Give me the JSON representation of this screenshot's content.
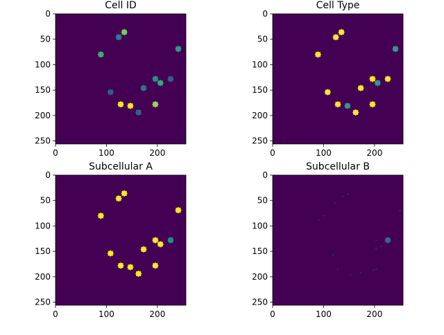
{
  "figure": {
    "background": "#ffffff"
  },
  "colors": {
    "viridis_0": "#440154",
    "viridis_25": "#3b528b",
    "viridis_50": "#21918c",
    "viridis_75": "#5ec962",
    "viridis_100": "#fde725"
  },
  "chart_data": [
    {
      "type": "heatmap",
      "title": "Cell ID",
      "xlabel": "",
      "ylabel": "",
      "image_size": [
        256,
        256
      ],
      "xlim": [
        0,
        256
      ],
      "ylim": [
        256,
        0
      ],
      "xticks": [
        0,
        100,
        200
      ],
      "yticks": [
        0,
        50,
        100,
        150,
        200,
        250
      ],
      "colormap": "viridis",
      "background_value": 0,
      "blobs": [
        {
          "x": 135,
          "y": 36,
          "value": 0.78
        },
        {
          "x": 124,
          "y": 46,
          "value": 0.42
        },
        {
          "x": 89,
          "y": 80,
          "value": 0.62
        },
        {
          "x": 241,
          "y": 69,
          "value": 0.55
        },
        {
          "x": 108,
          "y": 154,
          "value": 0.28
        },
        {
          "x": 173,
          "y": 146,
          "value": 0.4
        },
        {
          "x": 196,
          "y": 128,
          "value": 0.5
        },
        {
          "x": 206,
          "y": 136,
          "value": 0.6
        },
        {
          "x": 226,
          "y": 128,
          "value": 0.3
        },
        {
          "x": 128,
          "y": 178,
          "value": 1.0
        },
        {
          "x": 147,
          "y": 181,
          "value": 1.0
        },
        {
          "x": 163,
          "y": 194,
          "value": 0.3
        },
        {
          "x": 196,
          "y": 178,
          "value": 0.85
        }
      ]
    },
    {
      "type": "heatmap",
      "title": "Cell Type",
      "xlabel": "",
      "ylabel": "",
      "image_size": [
        256,
        256
      ],
      "xlim": [
        0,
        256
      ],
      "ylim": [
        256,
        0
      ],
      "xticks": [
        0,
        100,
        200
      ],
      "yticks": [
        0,
        50,
        100,
        150,
        200,
        250
      ],
      "colormap": "viridis",
      "background_value": 0,
      "blobs": [
        {
          "x": 135,
          "y": 36,
          "value": 1.0
        },
        {
          "x": 124,
          "y": 46,
          "value": 1.0
        },
        {
          "x": 89,
          "y": 80,
          "value": 1.0
        },
        {
          "x": 241,
          "y": 69,
          "value": 0.55
        },
        {
          "x": 108,
          "y": 154,
          "value": 1.0
        },
        {
          "x": 173,
          "y": 146,
          "value": 1.0
        },
        {
          "x": 196,
          "y": 128,
          "value": 1.0
        },
        {
          "x": 206,
          "y": 136,
          "value": 0.55
        },
        {
          "x": 226,
          "y": 128,
          "value": 1.0
        },
        {
          "x": 128,
          "y": 178,
          "value": 1.0
        },
        {
          "x": 147,
          "y": 181,
          "value": 0.55
        },
        {
          "x": 163,
          "y": 194,
          "value": 1.0
        },
        {
          "x": 196,
          "y": 178,
          "value": 1.0
        }
      ]
    },
    {
      "type": "heatmap",
      "title": "Subcellular A",
      "xlabel": "",
      "ylabel": "",
      "image_size": [
        256,
        256
      ],
      "xlim": [
        0,
        256
      ],
      "ylim": [
        256,
        0
      ],
      "xticks": [
        0,
        100,
        200
      ],
      "yticks": [
        0,
        50,
        100,
        150,
        200,
        250
      ],
      "colormap": "viridis",
      "background_value": 0,
      "blobs": [
        {
          "x": 135,
          "y": 36,
          "value": 1.0
        },
        {
          "x": 124,
          "y": 46,
          "value": 1.0
        },
        {
          "x": 89,
          "y": 80,
          "value": 1.0
        },
        {
          "x": 241,
          "y": 69,
          "value": 1.0
        },
        {
          "x": 108,
          "y": 154,
          "value": 1.0
        },
        {
          "x": 173,
          "y": 146,
          "value": 1.0
        },
        {
          "x": 196,
          "y": 128,
          "value": 1.0
        },
        {
          "x": 206,
          "y": 136,
          "value": 1.0
        },
        {
          "x": 226,
          "y": 128,
          "value": 0.5
        },
        {
          "x": 128,
          "y": 178,
          "value": 1.0
        },
        {
          "x": 147,
          "y": 181,
          "value": 1.0
        },
        {
          "x": 163,
          "y": 194,
          "value": 1.0
        },
        {
          "x": 196,
          "y": 178,
          "value": 1.0
        }
      ]
    },
    {
      "type": "heatmap",
      "title": "Subcellular B",
      "xlabel": "",
      "ylabel": "",
      "image_size": [
        256,
        256
      ],
      "xlim": [
        0,
        256
      ],
      "ylim": [
        256,
        0
      ],
      "xticks": [
        0,
        100,
        200
      ],
      "yticks": [
        0,
        50,
        100,
        150,
        200,
        250
      ],
      "colormap": "viridis",
      "background_value": 0,
      "blobs": [
        {
          "x": 226,
          "y": 128,
          "value": 0.35
        }
      ],
      "specks": [
        {
          "x": 100,
          "y": 80,
          "value": 0.3
        },
        {
          "x": 122,
          "y": 55,
          "value": 0.3
        },
        {
          "x": 138,
          "y": 42,
          "value": 0.3
        },
        {
          "x": 148,
          "y": 37,
          "value": 0.3
        },
        {
          "x": 90,
          "y": 88,
          "value": 0.3
        },
        {
          "x": 250,
          "y": 70,
          "value": 0.3
        },
        {
          "x": 203,
          "y": 128,
          "value": 0.3
        },
        {
          "x": 213,
          "y": 140,
          "value": 0.3
        },
        {
          "x": 203,
          "y": 145,
          "value": 0.3
        },
        {
          "x": 118,
          "y": 157,
          "value": 0.3
        },
        {
          "x": 203,
          "y": 185,
          "value": 0.3
        },
        {
          "x": 198,
          "y": 187,
          "value": 0.3
        },
        {
          "x": 173,
          "y": 192,
          "value": 0.3
        },
        {
          "x": 128,
          "y": 185,
          "value": 0.3
        },
        {
          "x": 153,
          "y": 196,
          "value": 0.3
        }
      ]
    }
  ]
}
